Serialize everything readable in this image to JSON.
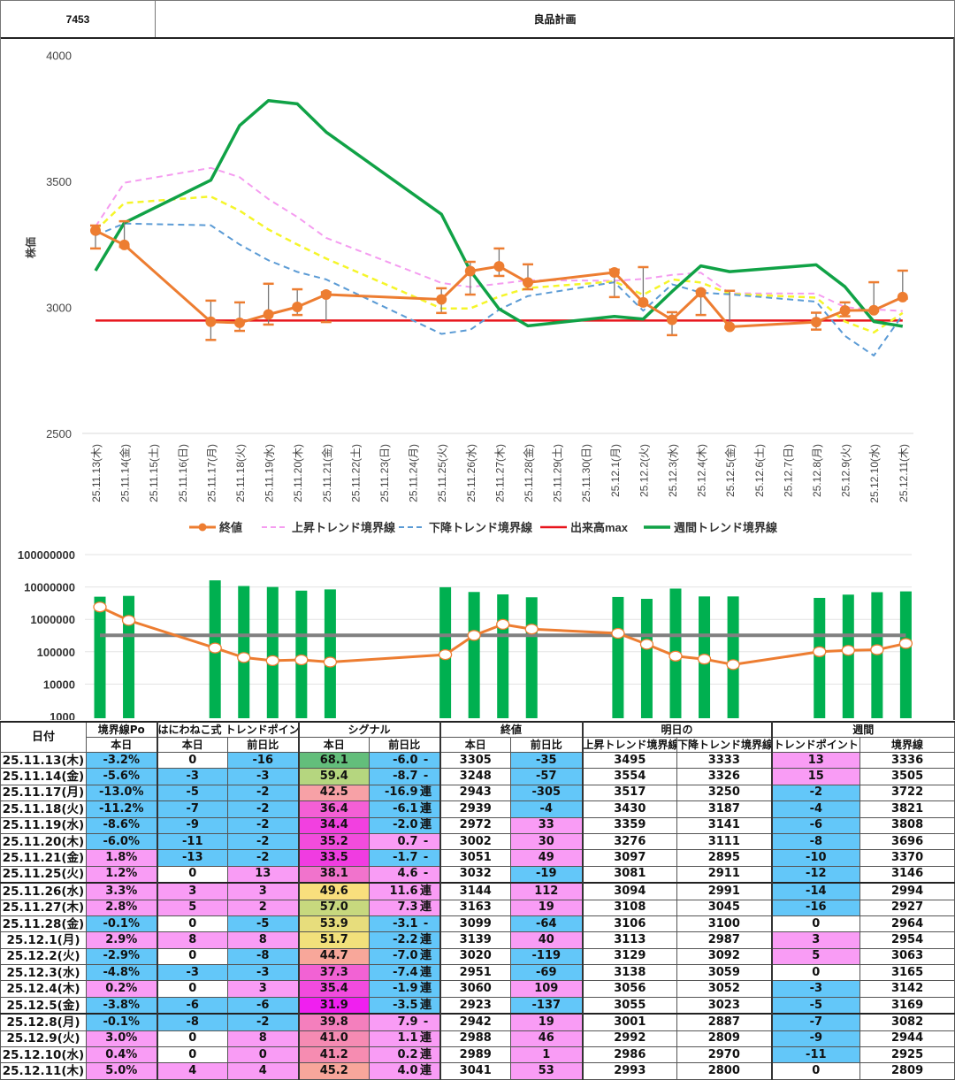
{
  "header": {
    "code": "7453",
    "name": "良品計画"
  },
  "colors": {
    "blue": "#63c7f9",
    "pink": "#f99cf5",
    "white": "#ffffff",
    "close": "#ed7d31",
    "rise": "#f59cf0",
    "mid": "#f5f52a",
    "fall": "#5b9bd5",
    "volmax": "#e8141c",
    "weekly": "#10a246",
    "volume_bar": "#00b050",
    "volume_ref": "#808080"
  },
  "chart_data": [
    {
      "type": "line",
      "ylabel": "株価",
      "ylim": [
        2500,
        4000
      ],
      "yticks": [
        "4000",
        "3500",
        "3000",
        "2500"
      ],
      "grid": false,
      "legend_position": "bottom",
      "categories": [
        "25.11.13(木)",
        "25.11.14(金)",
        "25.11.15(土)",
        "25.11.16(日)",
        "25.11.17(月)",
        "25.11.18(火)",
        "25.11.19(水)",
        "25.11.20(木)",
        "25.11.21(金)",
        "25.11.22(土)",
        "25.11.23(日)",
        "25.11.24(月)",
        "25.11.25(火)",
        "25.11.26(水)",
        "25.11.27(木)",
        "25.11.28(金)",
        "25.11.29(土)",
        "25.11.30(日)",
        "25.12.1(月)",
        "25.12.2(火)",
        "25.12.3(水)",
        "25.12.4(木)",
        "25.12.5(金)",
        "25.12.6(土)",
        "25.12.7(日)",
        "25.12.8(月)",
        "25.12.9(火)",
        "25.12.10(水)",
        "25.12.11(木)"
      ],
      "x": [
        "25.11.13(木)",
        "25.11.14(金)",
        "25.11.17(月)",
        "25.11.18(火)",
        "25.11.19(水)",
        "25.11.20(木)",
        "25.11.21(金)",
        "25.11.25(火)",
        "25.11.26(水)",
        "25.11.27(木)",
        "25.11.28(金)",
        "25.12.1(月)",
        "25.12.2(火)",
        "25.12.3(水)",
        "25.12.4(木)",
        "25.12.5(金)",
        "25.12.8(月)",
        "25.12.9(火)",
        "25.12.10(水)",
        "25.12.11(木)"
      ],
      "series": [
        {
          "name": "終値",
          "style": "line-marker",
          "values": [
            3305,
            3248,
            2943,
            2939,
            2972,
            3002,
            3051,
            3032,
            3144,
            3163,
            3099,
            3139,
            3020,
            2951,
            3060,
            2923,
            2942,
            2988,
            2989,
            3041
          ],
          "high": [
            3325,
            3342,
            3027,
            3020,
            3094,
            3072,
            3060,
            3076,
            3181,
            3234,
            3171,
            3150,
            3160,
            2981,
            3065,
            3066,
            2979,
            3020,
            3100,
            3146
          ],
          "low": [
            3234,
            3240,
            2871,
            2907,
            2932,
            2970,
            2942,
            2978,
            3051,
            3125,
            3072,
            3041,
            3010,
            2890,
            2970,
            2920,
            2912,
            2965,
            2985,
            3035
          ]
        },
        {
          "name": "上昇トレンド境界線",
          "style": "dashed",
          "values": [
            3321,
            3495,
            3554,
            3517,
            3430,
            3359,
            3276,
            3097,
            3081,
            3094,
            3108,
            3106,
            3113,
            3129,
            3138,
            3056,
            3055,
            3001,
            2992,
            2986
          ]
        },
        {
          "style": "dashed",
          "values": [
            3305,
            3414,
            3440,
            3384,
            3309,
            3250,
            3194,
            2996,
            2996,
            3043,
            3077,
            3103,
            3050,
            3111,
            3099,
            3054,
            3039,
            2944,
            2901,
            2978
          ]
        },
        {
          "name": "下降トレンド境界線",
          "style": "dashed",
          "values": [
            3286,
            3333,
            3326,
            3250,
            3187,
            3141,
            3111,
            2895,
            2911,
            2991,
            3045,
            3100,
            2987,
            3092,
            3059,
            3052,
            3023,
            2887,
            2809,
            2970
          ]
        },
        {
          "name": "出来高max",
          "style": "line",
          "values": [
            2948,
            2948,
            2948,
            2948,
            2948,
            2948,
            2948,
            2948,
            2948,
            2948,
            2948,
            2948,
            2948,
            2948,
            2948,
            2948,
            2948,
            2948,
            2948,
            2948
          ]
        },
        {
          "name": "週間トレンド境界線",
          "style": "line",
          "values": [
            3146,
            3336,
            3505,
            3722,
            3821,
            3808,
            3696,
            3370,
            3146,
            2994,
            2927,
            2964,
            2954,
            3063,
            3165,
            3142,
            3169,
            3082,
            2944,
            2925
          ]
        }
      ]
    },
    {
      "type": "bar",
      "yscale": "log",
      "ylim": [
        1000,
        100000000
      ],
      "yticks": [
        "100000000",
        "10000000",
        "1000000",
        "100000",
        "10000",
        "1000"
      ],
      "grid": true,
      "x": [
        "25.11.13(木)",
        "25.11.14(金)",
        "25.11.17(月)",
        "25.11.18(火)",
        "25.11.19(水)",
        "25.11.20(木)",
        "25.11.21(金)",
        "25.11.25(火)",
        "25.11.26(水)",
        "25.11.27(木)",
        "25.11.28(金)",
        "25.12.1(月)",
        "25.12.2(火)",
        "25.12.3(水)",
        "25.12.4(木)",
        "25.12.5(金)",
        "25.12.8(月)",
        "25.12.9(火)",
        "25.12.10(水)",
        "25.12.11(木)"
      ],
      "series": [
        {
          "style": "bar",
          "values": [
            5000000,
            5300000,
            16000000,
            10700000,
            10000000,
            7700000,
            8400000,
            9800000,
            7000000,
            5900000,
            4800000,
            4900000,
            4300000,
            8900000,
            5100000,
            5100000,
            4600000,
            5800000,
            6900000,
            7300000
          ]
        },
        {
          "style": "line-marker",
          "values": [
            2400000,
            930000,
            130000,
            66000,
            53000,
            56000,
            48000,
            81000,
            320000,
            700000,
            500000,
            370000,
            170000,
            73000,
            59000,
            40000,
            100000,
            110000,
            115000,
            180000
          ]
        },
        {
          "style": "line",
          "values": [
            320000,
            320000,
            320000,
            320000,
            320000,
            320000,
            320000,
            320000,
            320000,
            320000,
            320000,
            320000,
            320000,
            320000,
            320000,
            320000,
            320000,
            320000,
            320000,
            320000
          ]
        }
      ]
    }
  ],
  "table": {
    "group_headers": [
      "日付",
      "境界線Po",
      "はにわねこ式 トレンドポイント",
      "シグナル",
      "終値",
      "明日の",
      "週間"
    ],
    "sub_headers": [
      "本日",
      "本日",
      "前日比",
      "本日",
      "前日比",
      "本日",
      "前日比",
      "上昇トレンド境界線",
      "下降トレンド境界線",
      "トレンドポイント",
      "境界線"
    ],
    "rows": [
      [
        "25.11.13(木)",
        "-3.2%",
        "0",
        "-16",
        "68.1",
        "-6.0",
        "-",
        "3305",
        "-35",
        "3495",
        "3333",
        "13",
        "3336"
      ],
      [
        "25.11.14(金)",
        "-5.6%",
        "-3",
        "-3",
        "59.4",
        "-8.7",
        "-",
        "3248",
        "-57",
        "3554",
        "3326",
        "15",
        "3505"
      ],
      [
        "25.11.17(月)",
        "-13.0%",
        "-5",
        "-2",
        "42.5",
        "-16.9",
        "連",
        "2943",
        "-305",
        "3517",
        "3250",
        "-2",
        "3722"
      ],
      [
        "25.11.18(火)",
        "-11.2%",
        "-7",
        "-2",
        "36.4",
        "-6.1",
        "連",
        "2939",
        "-4",
        "3430",
        "3187",
        "-4",
        "3821"
      ],
      [
        "25.11.19(水)",
        "-8.6%",
        "-9",
        "-2",
        "34.4",
        "-2.0",
        "連",
        "2972",
        "33",
        "3359",
        "3141",
        "-6",
        "3808"
      ],
      [
        "25.11.20(木)",
        "-6.0%",
        "-11",
        "-2",
        "35.2",
        "0.7",
        "-",
        "3002",
        "30",
        "3276",
        "3111",
        "-8",
        "3696"
      ],
      [
        "25.11.21(金)",
        "1.8%",
        "-13",
        "-2",
        "33.5",
        "-1.7",
        "-",
        "3051",
        "49",
        "3097",
        "2895",
        "-10",
        "3370"
      ],
      [
        "25.11.25(火)",
        "1.2%",
        "0",
        "13",
        "38.1",
        "4.6",
        "-",
        "3032",
        "-19",
        "3081",
        "2911",
        "-12",
        "3146"
      ],
      [
        "25.11.26(水)",
        "3.3%",
        "3",
        "3",
        "49.6",
        "11.6",
        "連",
        "3144",
        "112",
        "3094",
        "2991",
        "-14",
        "2994"
      ],
      [
        "25.11.27(木)",
        "2.8%",
        "5",
        "2",
        "57.0",
        "7.3",
        "連",
        "3163",
        "19",
        "3108",
        "3045",
        "-16",
        "2927"
      ],
      [
        "25.11.28(金)",
        "-0.1%",
        "0",
        "-5",
        "53.9",
        "-3.1",
        "-",
        "3099",
        "-64",
        "3106",
        "3100",
        "0",
        "2964"
      ],
      [
        "25.12.1(月)",
        "2.9%",
        "8",
        "8",
        "51.7",
        "-2.2",
        "連",
        "3139",
        "40",
        "3113",
        "2987",
        "3",
        "2954"
      ],
      [
        "25.12.2(火)",
        "-2.9%",
        "0",
        "-8",
        "44.7",
        "-7.0",
        "連",
        "3020",
        "-119",
        "3129",
        "3092",
        "5",
        "3063"
      ],
      [
        "25.12.3(水)",
        "-4.8%",
        "-3",
        "-3",
        "37.3",
        "-7.4",
        "連",
        "2951",
        "-69",
        "3138",
        "3059",
        "0",
        "3165"
      ],
      [
        "25.12.4(木)",
        "0.2%",
        "0",
        "3",
        "35.4",
        "-1.9",
        "連",
        "3060",
        "109",
        "3056",
        "3052",
        "-3",
        "3142"
      ],
      [
        "25.12.5(金)",
        "-3.8%",
        "-6",
        "-6",
        "31.9",
        "-3.5",
        "連",
        "2923",
        "-137",
        "3055",
        "3023",
        "-5",
        "3169"
      ],
      [
        "25.12.8(月)",
        "-0.1%",
        "-8",
        "-2",
        "39.8",
        "7.9",
        "-",
        "2942",
        "19",
        "3001",
        "2887",
        "-7",
        "3082"
      ],
      [
        "25.12.9(火)",
        "3.0%",
        "0",
        "8",
        "41.0",
        "1.1",
        "連",
        "2988",
        "46",
        "2992",
        "2809",
        "-9",
        "2944"
      ],
      [
        "25.12.10(水)",
        "0.4%",
        "0",
        "0",
        "41.2",
        "0.2",
        "連",
        "2989",
        "1",
        "2986",
        "2970",
        "-11",
        "2925"
      ],
      [
        "25.12.11(木)",
        "5.0%",
        "4",
        "4",
        "45.2",
        "4.0",
        "連",
        "3041",
        "53",
        "2993",
        "2800",
        "0",
        "2809"
      ]
    ],
    "signal_colors": [
      "#63be7b",
      "#b5d67f",
      "#f7a1a6",
      "#f45fd6",
      "#f240e0",
      "#f24cdd",
      "#f03ce1",
      "#f173cc",
      "#f9df7d",
      "#c7d87e",
      "#e7dd7c",
      "#f2e07b",
      "#f8a79a",
      "#f262d4",
      "#f24bde",
      "#f01ff0",
      "#f47fbd",
      "#f68bb3",
      "#f68cb1",
      "#f8a69b"
    ],
    "week_breaks": [
      "25.11.26(水)",
      "25.12.8(月)"
    ]
  }
}
